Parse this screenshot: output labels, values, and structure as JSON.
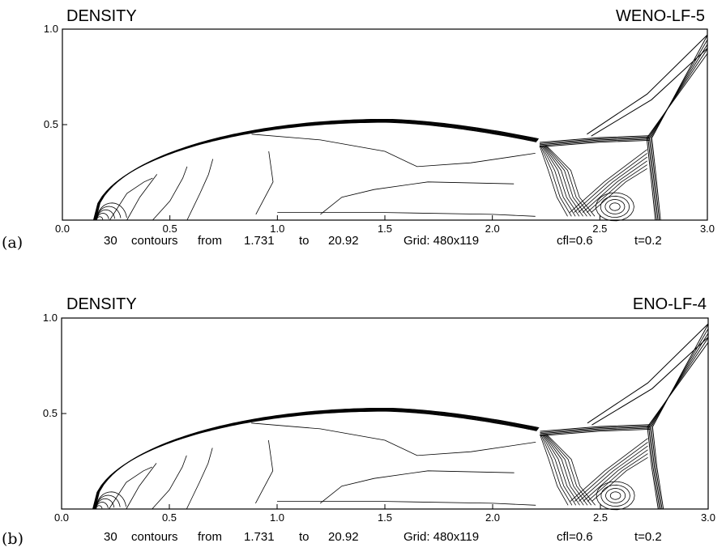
{
  "chart_data": [
    {
      "type": "contour",
      "panel_label": "(a)",
      "title": "DENSITY",
      "scheme": "WENO-LF-5",
      "xlim": [
        0.0,
        3.0
      ],
      "ylim": [
        0.0,
        1.0
      ],
      "x_ticks": [
        "0.0",
        "0.5",
        "1.0",
        "1.5",
        "2.0",
        "2.5",
        "3.0"
      ],
      "y_ticks": [
        "0.5",
        "1.0"
      ],
      "caption": {
        "contours": "30",
        "word_contours": "contours",
        "word_from": "from",
        "min": "1.731",
        "word_to": "to",
        "max": "20.92",
        "grid": "Grid: 480x119",
        "cfl": "cfl=0.6",
        "time": "t=0.2"
      }
    },
    {
      "type": "contour",
      "panel_label": "(b)",
      "title": "DENSITY",
      "scheme": "ENO-LF-4",
      "xlim": [
        0.0,
        3.0
      ],
      "ylim": [
        0.0,
        1.0
      ],
      "x_ticks": [
        "0.0",
        "0.5",
        "1.0",
        "1.5",
        "2.0",
        "2.5",
        "3.0"
      ],
      "y_ticks": [
        "0.5",
        "1.0"
      ],
      "caption": {
        "contours": "30",
        "word_contours": "contours",
        "word_from": "from",
        "min": "1.731",
        "word_to": "to",
        "max": "20.92",
        "grid": "Grid: 480x119",
        "cfl": "cfl=0.6",
        "time": "t=0.2"
      }
    }
  ]
}
